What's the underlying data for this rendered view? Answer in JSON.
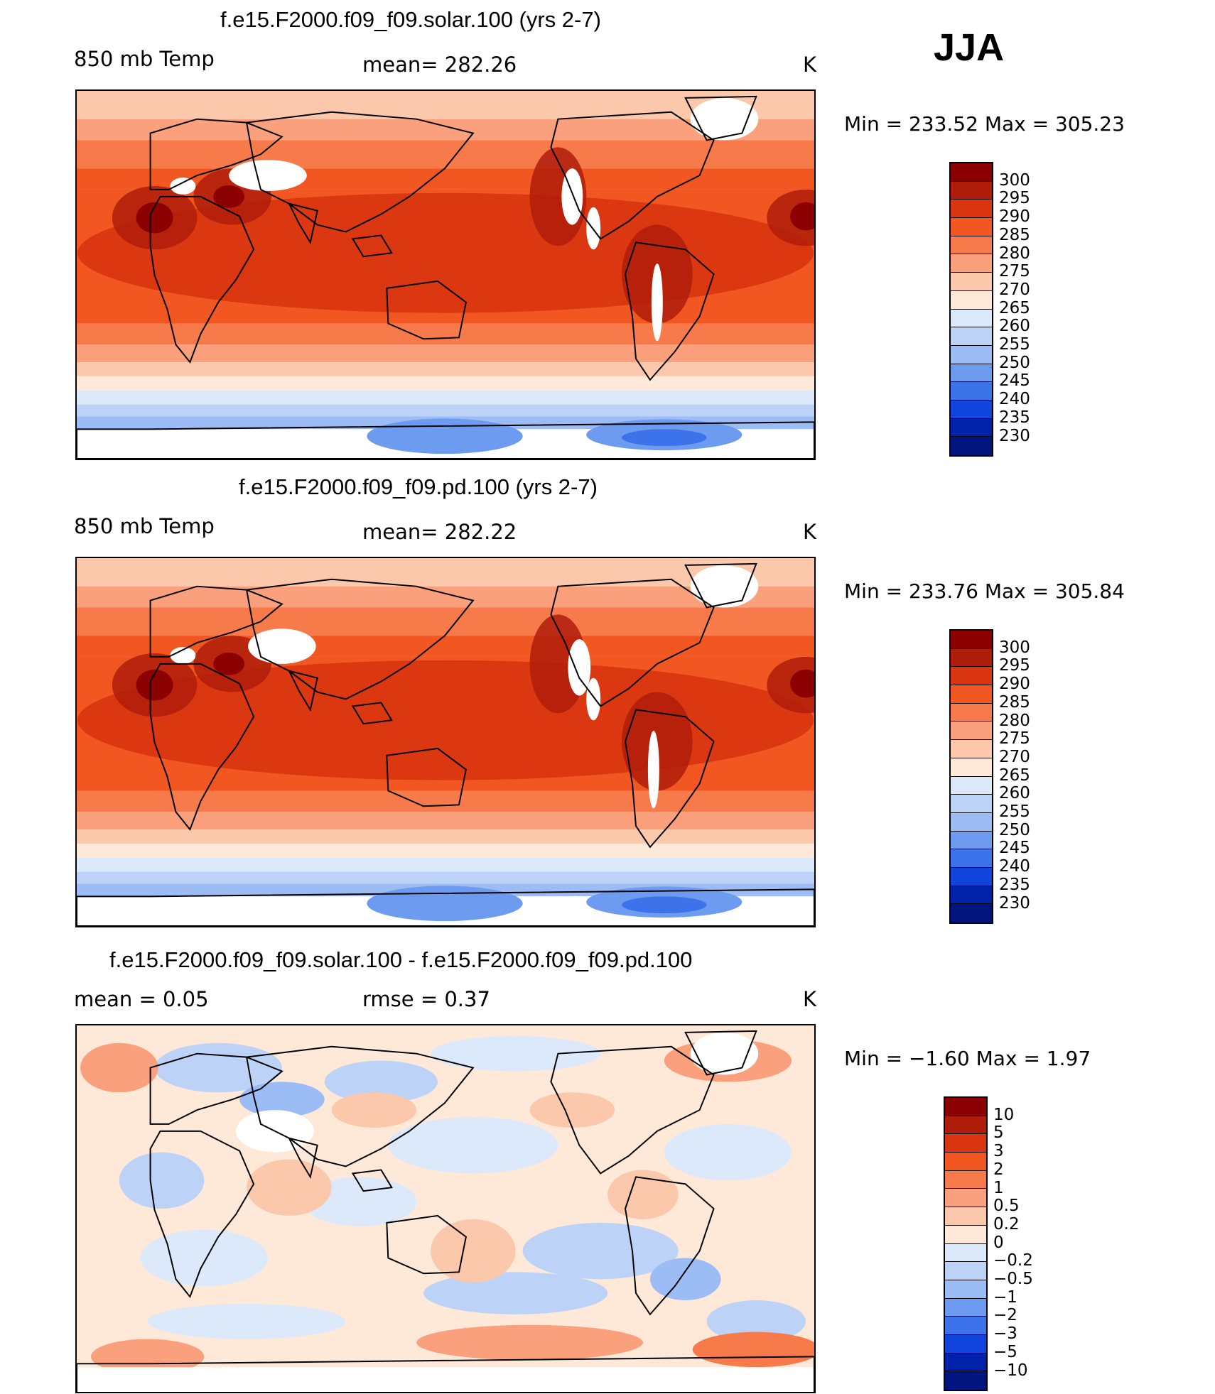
{
  "season": "JJA",
  "panels": [
    {
      "title": "f.e15.F2000.f09_f09.solar.100 (yrs 2-7)",
      "left_text": "850 mb Temp",
      "center_text": "mean= 282.26",
      "units": "K",
      "minmax": "Min  =  233.52  Max  =  305.23",
      "scale": "abs"
    },
    {
      "title": "f.e15.F2000.f09_f09.pd.100 (yrs 2-7)",
      "left_text": "850 mb Temp",
      "center_text": "mean= 282.22",
      "units": "K",
      "minmax": "Min  =  233.76  Max  =  305.84",
      "scale": "abs"
    },
    {
      "title": "f.e15.F2000.f09_f09.solar.100 - f.e15.F2000.f09_f09.pd.100",
      "left_text": "mean  =     0.05",
      "center_text": "rmse  =     0.37",
      "units": "K",
      "minmax": "Min  =   −1.60  Max  =     1.97",
      "scale": "diff"
    }
  ],
  "colorbars": {
    "abs": {
      "labels": [
        "300",
        "295",
        "290",
        "285",
        "280",
        "275",
        "270",
        "265",
        "260",
        "255",
        "250",
        "245",
        "240",
        "235",
        "230"
      ],
      "colors": [
        "#8b0000",
        "#b01c0a",
        "#d83510",
        "#f25722",
        "#f77a4a",
        "#faa07c",
        "#fcc8ab",
        "#fee8d8",
        "#dce9fa",
        "#bcd3f7",
        "#9cbcf5",
        "#6d9bf0",
        "#3c73eb",
        "#1144dd",
        "#0022aa",
        "#001580"
      ]
    },
    "diff": {
      "labels": [
        "10",
        "5",
        "3",
        "2",
        "1",
        "0.5",
        "0.2",
        "0",
        "−0.2",
        "−0.5",
        "−1",
        "−2",
        "−3",
        "−5",
        "−10"
      ],
      "colors": [
        "#8b0000",
        "#b01c0a",
        "#d83510",
        "#f25722",
        "#f77a4a",
        "#faa07c",
        "#fcc8ab",
        "#fee8d8",
        "#dce9fa",
        "#bcd3f7",
        "#9cbcf5",
        "#6d9bf0",
        "#3c73eb",
        "#1144dd",
        "#0022aa",
        "#001580"
      ]
    }
  }
}
